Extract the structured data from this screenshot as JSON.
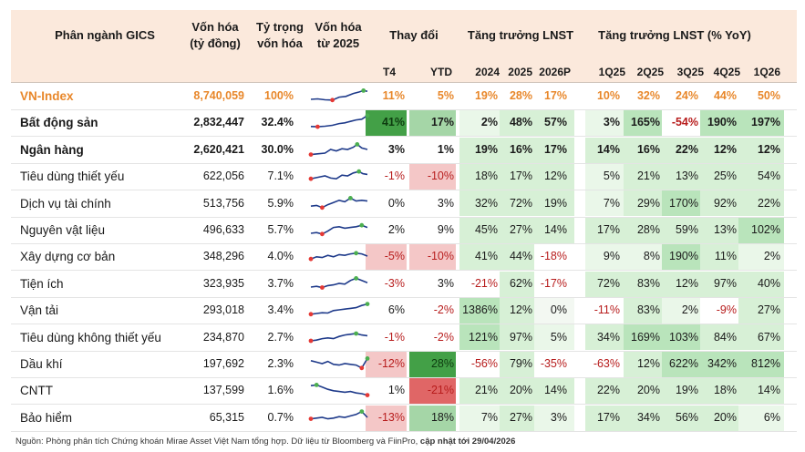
{
  "header": {
    "sector": "Phân ngành GICS",
    "cap_line1": "Vốn hóa",
    "cap_line2": "(tỷ đồng)",
    "weight_line1": "Tỷ trọng",
    "weight_line2": "vốn hóa",
    "trend_line1": "Vốn hóa",
    "trend_line2": "từ 2025",
    "change": "Thay đổi",
    "npat_growth": "Tăng trưởng LNST",
    "npat_growth_yoy": "Tăng trưởng LNST (% YoY)"
  },
  "subheader": {
    "t4": "T4",
    "ytd": "YTD",
    "y2024": "2024",
    "y2025": "2025",
    "y2026p": "2026P",
    "q1_25": "1Q25",
    "q2_25": "2Q25",
    "q3_25": "3Q25",
    "q4_25": "4Q25",
    "q1_26": "1Q26"
  },
  "rows": [
    {
      "name": "VN-Index",
      "cap": "8,740,059",
      "weight": "100%",
      "t4": "11%",
      "ytd": "5%",
      "y2024": "19%",
      "y2025": "28%",
      "y2026p": "17%",
      "q1_25": "10%",
      "q2_25": "32%",
      "q3_25": "24%",
      "q4_25": "44%",
      "q1_26": "50%"
    },
    {
      "name": "Bất động sản",
      "cap": "2,832,447",
      "weight": "32.4%",
      "t4": "41%",
      "ytd": "17%",
      "y2024": "2%",
      "y2025": "48%",
      "y2026p": "57%",
      "q1_25": "3%",
      "q2_25": "165%",
      "q3_25": "-54%",
      "q4_25": "190%",
      "q1_26": "197%"
    },
    {
      "name": "Ngân hàng",
      "cap": "2,620,421",
      "weight": "30.0%",
      "t4": "3%",
      "ytd": "1%",
      "y2024": "19%",
      "y2025": "16%",
      "y2026p": "17%",
      "q1_25": "14%",
      "q2_25": "16%",
      "q3_25": "22%",
      "q4_25": "12%",
      "q1_26": "12%"
    },
    {
      "name": "Tiêu dùng thiết yếu",
      "cap": "622,056",
      "weight": "7.1%",
      "t4": "-1%",
      "ytd": "-10%",
      "y2024": "18%",
      "y2025": "17%",
      "y2026p": "12%",
      "q1_25": "5%",
      "q2_25": "21%",
      "q3_25": "13%",
      "q4_25": "25%",
      "q1_26": "54%"
    },
    {
      "name": "Dịch vụ tài chính",
      "cap": "513,756",
      "weight": "5.9%",
      "t4": "0%",
      "ytd": "3%",
      "y2024": "32%",
      "y2025": "72%",
      "y2026p": "19%",
      "q1_25": "7%",
      "q2_25": "29%",
      "q3_25": "170%",
      "q4_25": "92%",
      "q1_26": "22%"
    },
    {
      "name": "Nguyên vật liệu",
      "cap": "496,633",
      "weight": "5.7%",
      "t4": "2%",
      "ytd": "9%",
      "y2024": "45%",
      "y2025": "27%",
      "y2026p": "14%",
      "q1_25": "17%",
      "q2_25": "28%",
      "q3_25": "59%",
      "q4_25": "13%",
      "q1_26": "102%"
    },
    {
      "name": "Xây dựng cơ bản",
      "cap": "348,296",
      "weight": "4.0%",
      "t4": "-5%",
      "ytd": "-10%",
      "y2024": "41%",
      "y2025": "44%",
      "y2026p": "-18%",
      "q1_25": "9%",
      "q2_25": "8%",
      "q3_25": "190%",
      "q4_25": "11%",
      "q1_26": "2%"
    },
    {
      "name": "Tiện ích",
      "cap": "323,935",
      "weight": "3.7%",
      "t4": "-3%",
      "ytd": "3%",
      "y2024": "-21%",
      "y2025": "62%",
      "y2026p": "-17%",
      "q1_25": "72%",
      "q2_25": "83%",
      "q3_25": "12%",
      "q4_25": "97%",
      "q1_26": "40%"
    },
    {
      "name": "Vận tải",
      "cap": "293,018",
      "weight": "3.4%",
      "t4": "6%",
      "ytd": "-2%",
      "y2024": "1386%",
      "y2025": "12%",
      "y2026p": "0%",
      "q1_25": "-11%",
      "q2_25": "83%",
      "q3_25": "2%",
      "q4_25": "-9%",
      "q1_26": "27%"
    },
    {
      "name": "Tiêu dùng không thiết yếu",
      "cap": "234,870",
      "weight": "2.7%",
      "t4": "-1%",
      "ytd": "-2%",
      "y2024": "121%",
      "y2025": "97%",
      "y2026p": "5%",
      "q1_25": "34%",
      "q2_25": "169%",
      "q3_25": "103%",
      "q4_25": "84%",
      "q1_26": "67%"
    },
    {
      "name": "Dầu khí",
      "cap": "197,692",
      "weight": "2.3%",
      "t4": "-12%",
      "ytd": "28%",
      "y2024": "-56%",
      "y2025": "79%",
      "y2026p": "-35%",
      "q1_25": "-63%",
      "q2_25": "12%",
      "q3_25": "622%",
      "q4_25": "342%",
      "q1_26": "812%"
    },
    {
      "name": "CNTT",
      "cap": "137,599",
      "weight": "1.6%",
      "t4": "1%",
      "ytd": "-21%",
      "y2024": "21%",
      "y2025": "20%",
      "y2026p": "14%",
      "q1_25": "22%",
      "q2_25": "20%",
      "q3_25": "19%",
      "q4_25": "18%",
      "q1_26": "14%"
    },
    {
      "name": "Bảo hiểm",
      "cap": "65,315",
      "weight": "0.7%",
      "t4": "-13%",
      "ytd": "18%",
      "y2024": "7%",
      "y2025": "27%",
      "y2026p": "3%",
      "q1_25": "17%",
      "q2_25": "34%",
      "q3_25": "56%",
      "q4_25": "20%",
      "q1_26": "6%"
    }
  ],
  "footer": {
    "source": "Nguồn: Phòng phân tích Chứng khoán Mirae Asset Việt Nam tổng hợp. Dữ liệu từ Bloomberg và FiinPro, ",
    "updated": "cập nhật tới 29/04/2026"
  },
  "colors": {
    "header_bg": "#fbe9dc",
    "accent_orange": "#e8872a",
    "positive_green": "#43a047",
    "negative_red": "#e57373",
    "spark_line": "#1e3a8a",
    "spark_high": "#4caf50",
    "spark_low": "#e53935"
  }
}
